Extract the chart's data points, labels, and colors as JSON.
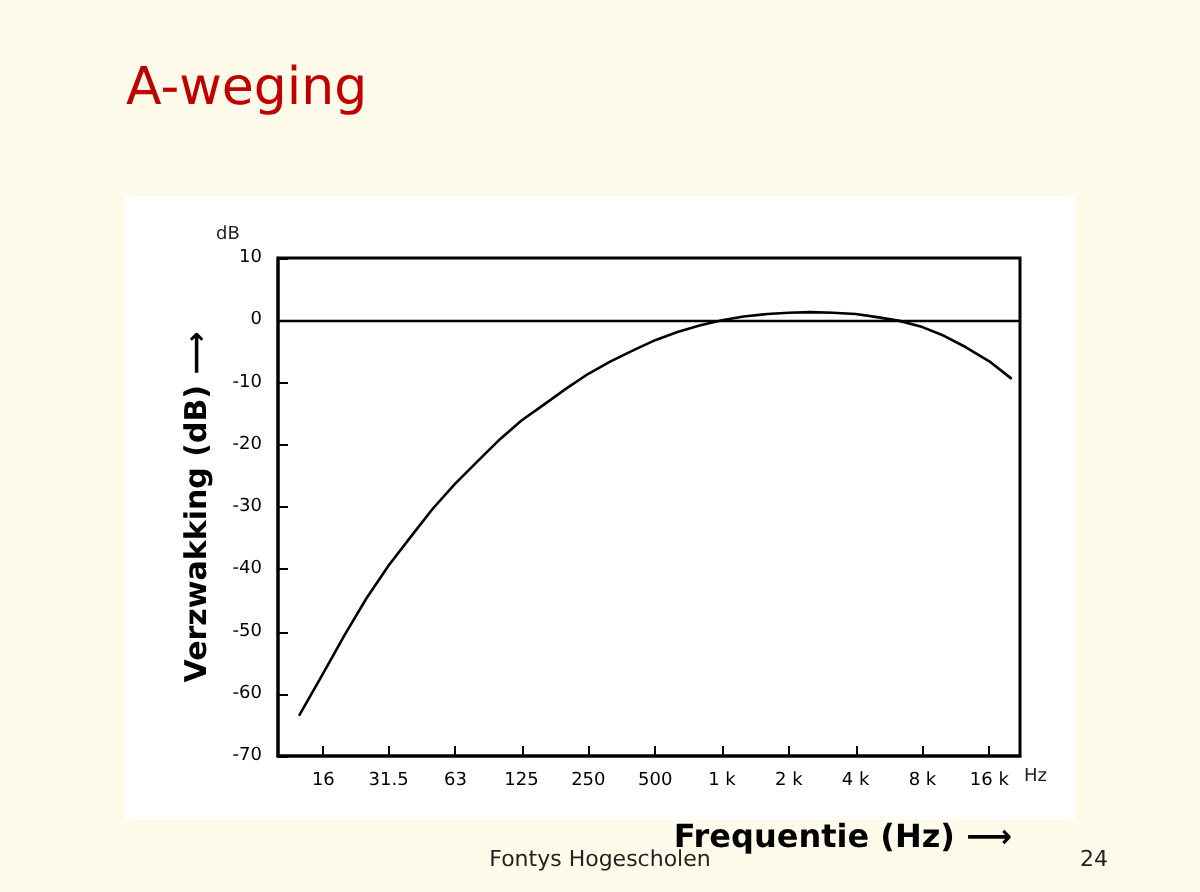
{
  "chart_data": {
    "type": "line",
    "title": "A-weging",
    "xlabel": "Frequentie (Hz) ⟶",
    "ylabel": "Verzwakking (dB) ⟶",
    "x": [
      12.5,
      16,
      20,
      25,
      31.5,
      40,
      50,
      63,
      80,
      100,
      125,
      160,
      200,
      250,
      315,
      400,
      500,
      630,
      800,
      1000,
      1250,
      1600,
      2000,
      2500,
      3150,
      4000,
      5000,
      6300,
      8000,
      10000,
      12500,
      16000,
      20000
    ],
    "series": [
      {
        "color": "#000000",
        "values": [
          -63.4,
          -56.7,
          -50.5,
          -44.7,
          -39.4,
          -34.6,
          -30.2,
          -26.2,
          -22.5,
          -19.1,
          -16.1,
          -13.4,
          -10.9,
          -8.6,
          -6.6,
          -4.8,
          -3.2,
          -1.9,
          -0.8,
          0,
          0.6,
          1.0,
          1.2,
          1.3,
          1.2,
          1.0,
          0.5,
          -0.1,
          -1.1,
          -2.5,
          -4.3,
          -6.6,
          -9.3
        ]
      }
    ],
    "log": "x",
    "xlim": [
      10,
      22000
    ],
    "xticks": [
      16,
      31.5,
      63,
      125,
      250,
      500,
      {
        "value": 1000,
        "label": "1 k"
      },
      {
        "value": 2000,
        "label": "2 k"
      },
      {
        "value": 4000,
        "label": "4 k"
      },
      {
        "value": 8000,
        "label": "8 k"
      },
      {
        "value": 16000,
        "label": "16 k"
      }
    ],
    "ylim": [
      -70,
      10
    ],
    "yticks": [
      -70,
      -60,
      -50,
      -40,
      -30,
      -20,
      -10,
      0,
      10
    ],
    "ref_lines": [
      {
        "axis": "y",
        "value": 0,
        "color": "#000000"
      }
    ],
    "grid": false,
    "marker": "none",
    "line_style": "solid",
    "annotations": [
      "dB",
      "Hz",
      "Fontys Hogescholen",
      "24"
    ]
  }
}
